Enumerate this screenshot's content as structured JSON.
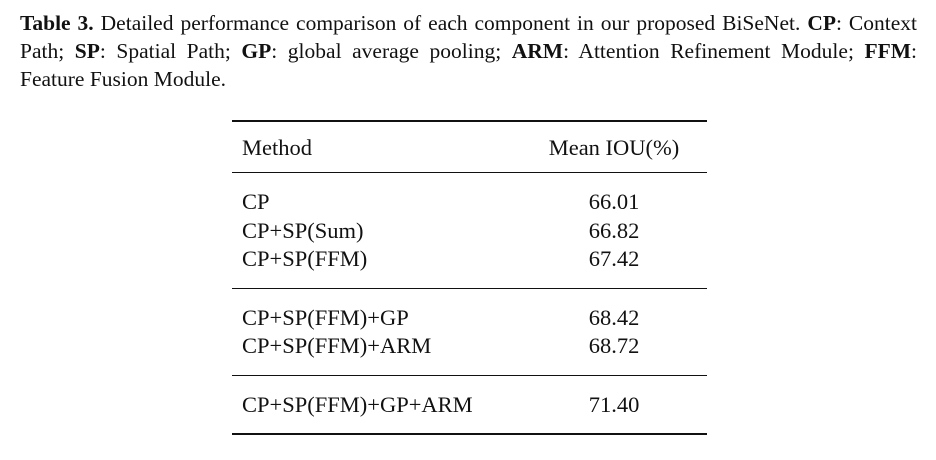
{
  "caption": {
    "label": "Table 3.",
    "segments": [
      {
        "bold": false,
        "text": " Detailed performance comparison of each component in our proposed BiSeNet. "
      },
      {
        "bold": true,
        "text": "CP"
      },
      {
        "bold": false,
        "text": ": Context Path; "
      },
      {
        "bold": true,
        "text": "SP"
      },
      {
        "bold": false,
        "text": ": Spatial Path; "
      },
      {
        "bold": true,
        "text": "GP"
      },
      {
        "bold": false,
        "text": ": global average pooling; "
      },
      {
        "bold": true,
        "text": "ARM"
      },
      {
        "bold": false,
        "text": ": Attention Refinement Module; "
      },
      {
        "bold": true,
        "text": "FFM"
      },
      {
        "bold": false,
        "text": ": Feature Fusion Module."
      }
    ]
  },
  "table": {
    "headers": [
      "Method",
      "Mean IOU(%)"
    ],
    "groups": [
      [
        {
          "method": "CP",
          "miou": "66.01"
        },
        {
          "method": "CP+SP(Sum)",
          "miou": "66.82"
        },
        {
          "method": "CP+SP(FFM)",
          "miou": "67.42"
        }
      ],
      [
        {
          "method": "CP+SP(FFM)+GP",
          "miou": "68.42"
        },
        {
          "method": "CP+SP(FFM)+ARM",
          "miou": "68.72"
        }
      ],
      [
        {
          "method": "CP+SP(FFM)+GP+ARM",
          "miou": "71.40"
        }
      ]
    ]
  }
}
